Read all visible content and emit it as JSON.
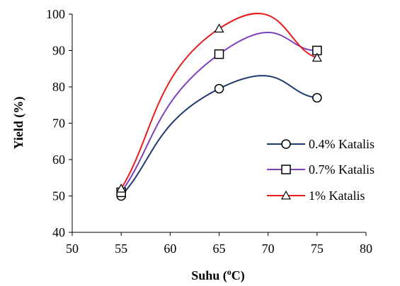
{
  "chart_data": {
    "type": "line",
    "xlabel": {
      "main": "Suhu (",
      "sup": "o",
      "rest": "C)"
    },
    "ylabel": "Yield (%)",
    "xlim": [
      50,
      80
    ],
    "ylim": [
      40,
      100
    ],
    "xticks": [
      50,
      55,
      60,
      65,
      70,
      75,
      80
    ],
    "yticks": [
      40,
      50,
      60,
      70,
      80,
      90,
      100
    ],
    "grid": false,
    "legend_position": "right",
    "x": [
      55,
      65,
      75
    ],
    "series": [
      {
        "name": "0.4% Katalis",
        "values": [
          50,
          79.5,
          77
        ],
        "color": "#1f3a6e",
        "marker": "circle"
      },
      {
        "name": "0.7% Katalis",
        "values": [
          51,
          89,
          90
        ],
        "color": "#7f3fbf",
        "marker": "square"
      },
      {
        "name": "1% Katalis",
        "values": [
          52,
          96,
          88
        ],
        "color": "#e81c1c",
        "marker": "triangle"
      }
    ]
  }
}
